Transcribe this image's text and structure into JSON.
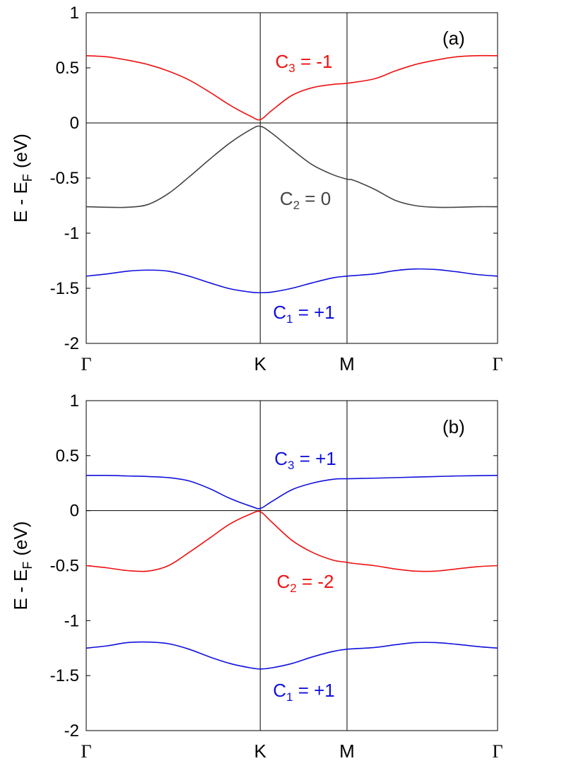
{
  "chart_data": [
    {
      "panel": "top",
      "type": "line",
      "panel_label": "(a)",
      "ylabel": {
        "main": "E - E",
        "sub": "F",
        "unit": "(eV)"
      },
      "ylim": [
        -2,
        1
      ],
      "yticks": [
        1,
        0.5,
        0,
        -0.5,
        -1,
        -1.5,
        -2
      ],
      "ytick_labels": [
        "1",
        "0.5",
        "0",
        "-0.5",
        "-1",
        "-1.5",
        "-2"
      ],
      "xlim": [
        0,
        1
      ],
      "xticks": [
        0,
        0.423,
        0.634,
        1
      ],
      "xtick_labels": [
        "Γ",
        "K",
        "M",
        "Γ"
      ],
      "fermi_level": 0,
      "series": [
        {
          "name": "band3",
          "color": "#ee1111",
          "label": {
            "main": "C",
            "sub": "3",
            "value": " = -1"
          },
          "x": [
            0,
            0.05,
            0.1,
            0.15,
            0.2,
            0.25,
            0.3,
            0.35,
            0.4,
            0.423,
            0.45,
            0.5,
            0.55,
            0.6,
            0.634,
            0.7,
            0.75,
            0.8,
            0.85,
            0.9,
            0.95,
            1.0
          ],
          "y": [
            0.61,
            0.6,
            0.57,
            0.53,
            0.47,
            0.39,
            0.28,
            0.16,
            0.06,
            0.03,
            0.11,
            0.25,
            0.32,
            0.35,
            0.36,
            0.4,
            0.47,
            0.53,
            0.57,
            0.6,
            0.61,
            0.61
          ]
        },
        {
          "name": "band2",
          "color": "#444444",
          "label": {
            "main": "C",
            "sub": "2",
            "value": " = 0"
          },
          "x": [
            0,
            0.05,
            0.1,
            0.15,
            0.2,
            0.25,
            0.3,
            0.35,
            0.4,
            0.423,
            0.45,
            0.5,
            0.55,
            0.6,
            0.634,
            0.65,
            0.7,
            0.75,
            0.8,
            0.85,
            0.9,
            0.95,
            1.0
          ],
          "y": [
            -0.76,
            -0.765,
            -0.765,
            -0.74,
            -0.64,
            -0.49,
            -0.33,
            -0.18,
            -0.06,
            -0.03,
            -0.09,
            -0.24,
            -0.38,
            -0.47,
            -0.51,
            -0.52,
            -0.6,
            -0.7,
            -0.75,
            -0.765,
            -0.765,
            -0.76,
            -0.76
          ]
        },
        {
          "name": "band1",
          "color": "#1111dd",
          "label": {
            "main": "C",
            "sub": "1",
            "value": " = +1"
          },
          "x": [
            0,
            0.05,
            0.1,
            0.15,
            0.2,
            0.25,
            0.3,
            0.35,
            0.4,
            0.423,
            0.45,
            0.5,
            0.55,
            0.6,
            0.634,
            0.7,
            0.75,
            0.8,
            0.85,
            0.9,
            0.95,
            1.0
          ],
          "y": [
            -1.39,
            -1.37,
            -1.345,
            -1.335,
            -1.345,
            -1.39,
            -1.45,
            -1.505,
            -1.535,
            -1.54,
            -1.535,
            -1.5,
            -1.45,
            -1.405,
            -1.39,
            -1.37,
            -1.34,
            -1.325,
            -1.33,
            -1.35,
            -1.375,
            -1.39
          ]
        }
      ]
    },
    {
      "panel": "bottom",
      "type": "line",
      "panel_label": "(b)",
      "ylabel": {
        "main": "E - E",
        "sub": "F",
        "unit": "(eV)"
      },
      "ylim": [
        -2,
        1
      ],
      "yticks": [
        1,
        0.5,
        0,
        -0.5,
        -1,
        -1.5,
        -2
      ],
      "ytick_labels": [
        "1",
        "0.5",
        "0",
        "-0.5",
        "-1",
        "-1.5",
        "-2"
      ],
      "xlim": [
        0,
        1
      ],
      "xticks": [
        0,
        0.423,
        0.634,
        1
      ],
      "xtick_labels": [
        "Γ",
        "K",
        "M",
        "Γ"
      ],
      "fermi_level": 0,
      "series": [
        {
          "name": "band3",
          "color": "#1111dd",
          "label": {
            "main": "C",
            "sub": "3",
            "value": " = +1"
          },
          "x": [
            0,
            0.05,
            0.1,
            0.15,
            0.2,
            0.25,
            0.3,
            0.35,
            0.4,
            0.423,
            0.45,
            0.5,
            0.55,
            0.6,
            0.634,
            0.7,
            0.8,
            0.9,
            1.0
          ],
          "y": [
            0.32,
            0.32,
            0.315,
            0.31,
            0.3,
            0.27,
            0.2,
            0.11,
            0.04,
            0.02,
            0.08,
            0.19,
            0.25,
            0.285,
            0.29,
            0.295,
            0.305,
            0.315,
            0.32
          ]
        },
        {
          "name": "band2",
          "color": "#ee1111",
          "label": {
            "main": "C",
            "sub": "2",
            "value": " = -2"
          },
          "x": [
            0,
            0.05,
            0.1,
            0.15,
            0.2,
            0.25,
            0.3,
            0.35,
            0.4,
            0.423,
            0.45,
            0.5,
            0.55,
            0.6,
            0.634,
            0.65,
            0.7,
            0.75,
            0.8,
            0.85,
            0.9,
            0.95,
            1.0
          ],
          "y": [
            -0.5,
            -0.52,
            -0.545,
            -0.55,
            -0.5,
            -0.38,
            -0.25,
            -0.12,
            -0.03,
            -0.01,
            -0.1,
            -0.27,
            -0.38,
            -0.45,
            -0.47,
            -0.48,
            -0.5,
            -0.53,
            -0.55,
            -0.55,
            -0.53,
            -0.51,
            -0.5
          ]
        },
        {
          "name": "band1",
          "color": "#1111dd",
          "label": {
            "main": "C",
            "sub": "1",
            "value": " = +1"
          },
          "x": [
            0,
            0.05,
            0.1,
            0.15,
            0.2,
            0.25,
            0.3,
            0.35,
            0.4,
            0.423,
            0.45,
            0.5,
            0.55,
            0.6,
            0.634,
            0.7,
            0.75,
            0.8,
            0.85,
            0.9,
            0.95,
            1.0
          ],
          "y": [
            -1.25,
            -1.23,
            -1.2,
            -1.195,
            -1.21,
            -1.26,
            -1.33,
            -1.39,
            -1.43,
            -1.44,
            -1.43,
            -1.39,
            -1.33,
            -1.28,
            -1.26,
            -1.245,
            -1.22,
            -1.2,
            -1.2,
            -1.215,
            -1.235,
            -1.25
          ]
        }
      ]
    }
  ]
}
